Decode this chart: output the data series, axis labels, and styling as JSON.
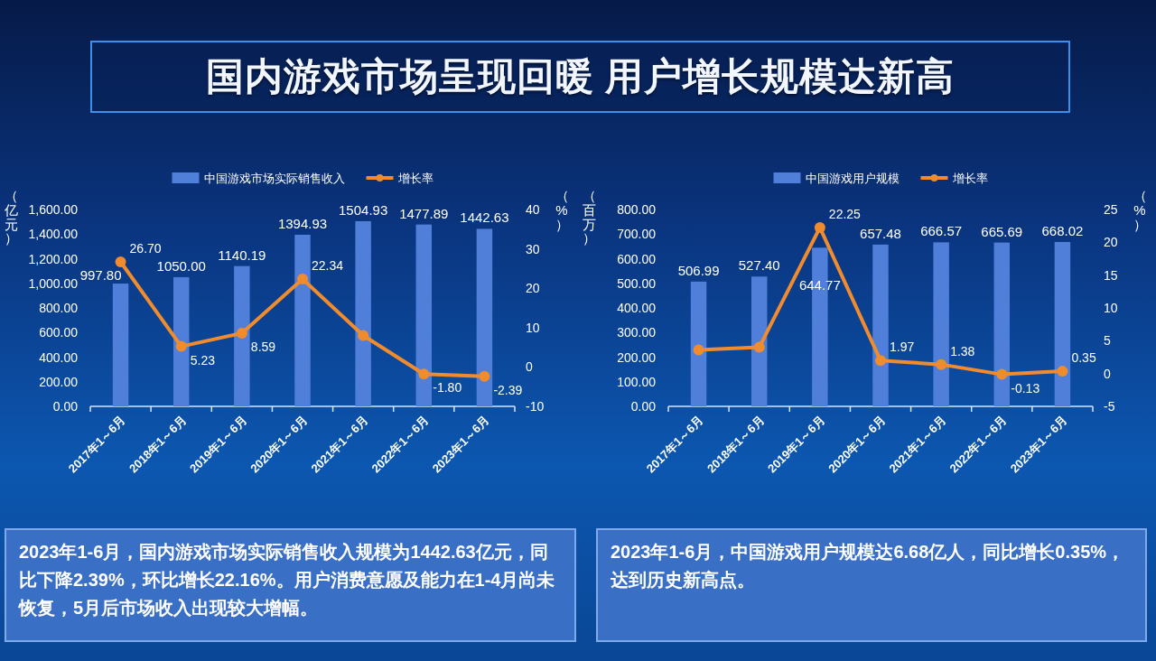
{
  "chart_data": [
    {
      "type": "other",
      "title": "国内游戏市场呈现回暖 用户增长规模达新高"
    },
    {
      "type": "bar",
      "categories": [
        "2017年1～6月",
        "2018年1～6月",
        "2019年1～6月",
        "2020年1～6月",
        "2021年1～6月",
        "2022年1～6月",
        "2023年1～6月"
      ],
      "ylabel": "（亿元）",
      "y2label": "（%）",
      "ylim": [
        0,
        1600
      ],
      "yticks": [
        {
          "value": 0,
          "label": "0.00"
        },
        {
          "value": 200,
          "label": "200.00"
        },
        {
          "value": 400,
          "label": "400.00"
        },
        {
          "value": 600,
          "label": "600.00"
        },
        {
          "value": 800,
          "label": "800.00"
        },
        {
          "value": 1000,
          "label": "1,000.00"
        },
        {
          "value": 1200,
          "label": "1,200.00"
        },
        {
          "value": 1400,
          "label": "1,400.00"
        },
        {
          "value": 1600,
          "label": "1,600.00"
        }
      ],
      "y2lim": [
        -10,
        40
      ],
      "y2ticks": [
        -10,
        0,
        10,
        20,
        30,
        40
      ],
      "legend": "top",
      "series": [
        {
          "name": "中国游戏市场实际销售收入",
          "type": "bar",
          "color": "#4f7fd8",
          "values": [
            997.8,
            1050.0,
            1140.19,
            1394.93,
            1504.93,
            1477.89,
            1442.63
          ],
          "value_labels": [
            "997.80",
            "1050.00",
            "1140.19",
            "1394.93",
            "1504.93",
            "1477.89",
            "1442.63"
          ]
        },
        {
          "name": "增长率",
          "type": "line",
          "axis": "y2",
          "color": "#f08c2e",
          "marker": "circle",
          "values": [
            26.7,
            5.23,
            8.59,
            22.34,
            8,
            -1.8,
            -2.39
          ],
          "value_labels": [
            "26.70",
            "5.23",
            "8.59",
            "22.34",
            null,
            "-1.80",
            "-2.39"
          ]
        }
      ],
      "annotations": [
        "2023年1-6月，国内游戏市场实际销售收入规模为1442.63亿元，同比下降2.39%，环比增长22.16%。用户消费意愿及能力在1-4月尚未恢复，5月后市场收入出现较大增幅。"
      ]
    },
    {
      "type": "bar",
      "categories": [
        "2017年1～6月",
        "2018年1～6月",
        "2019年1～6月",
        "2020年1～6月",
        "2021年1～6月",
        "2022年1～6月",
        "2023年1～6月"
      ],
      "ylabel": "（百万）",
      "y2label": "（%）",
      "ylim": [
        0,
        800
      ],
      "yticks": [
        {
          "value": 0,
          "label": "0.00"
        },
        {
          "value": 100,
          "label": "100.00"
        },
        {
          "value": 200,
          "label": "200.00"
        },
        {
          "value": 300,
          "label": "300.00"
        },
        {
          "value": 400,
          "label": "400.00"
        },
        {
          "value": 500,
          "label": "500.00"
        },
        {
          "value": 600,
          "label": "600.00"
        },
        {
          "value": 700,
          "label": "700.00"
        },
        {
          "value": 800,
          "label": "800.00"
        }
      ],
      "y2lim": [
        -5,
        25
      ],
      "y2ticks": [
        -5,
        0,
        5,
        10,
        15,
        20,
        25
      ],
      "legend": "top",
      "series": [
        {
          "name": "中国游戏用户规模",
          "type": "bar",
          "color": "#4f7fd8",
          "values": [
            506.99,
            527.4,
            644.77,
            657.48,
            666.57,
            665.69,
            668.02
          ],
          "value_labels": [
            "506.99",
            "527.40",
            "644.77",
            "657.48",
            "666.57",
            "665.69",
            "668.02"
          ]
        },
        {
          "name": "增长率",
          "type": "line",
          "axis": "y2",
          "color": "#f08c2e",
          "marker": "circle",
          "values": [
            3.6,
            4.0,
            22.25,
            1.97,
            1.38,
            -0.13,
            0.35
          ],
          "value_labels": [
            null,
            null,
            "22.25",
            "1.97",
            "1.38",
            "-0.13",
            "0.35"
          ]
        }
      ],
      "annotations": [
        "2023年1-6月，中国游戏用户规模达6.68亿人，同比增长0.35%，达到历史新高点。"
      ]
    }
  ]
}
